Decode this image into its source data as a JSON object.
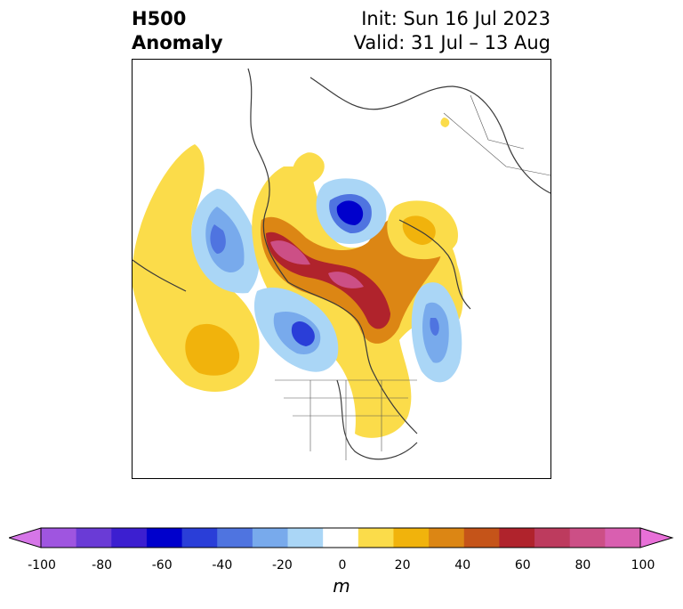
{
  "title": {
    "left_line1": "H500",
    "left_line2": "Anomaly",
    "right_line1": "Init: Sun 16 Jul 2023",
    "right_line2": "Valid: 31 Jul – 13 Aug"
  },
  "colorbar": {
    "unit": "m",
    "ticks": [
      "-100",
      "-80",
      "-60",
      "-40",
      "-20",
      "0",
      "20",
      "40",
      "60",
      "80",
      "100"
    ],
    "colors": [
      "#d676e8",
      "#9f55e0",
      "#6a3bd6",
      "#3c1fd0",
      "#0000cc",
      "#2a3ed8",
      "#4f74e0",
      "#78aaec",
      "#aad6f6",
      "#ffffff",
      "#fbdc4a",
      "#f1b30c",
      "#dc8614",
      "#c55419",
      "#b0232c",
      "#bd3b5e",
      "#cc4f86",
      "#d95fb0",
      "#e870d8"
    ],
    "extend": "both"
  },
  "map": {
    "projection": "north-polar-stereographic",
    "region": "North America / Arctic",
    "features": [
      "coastlines",
      "country-borders",
      "state-provinces"
    ]
  }
}
